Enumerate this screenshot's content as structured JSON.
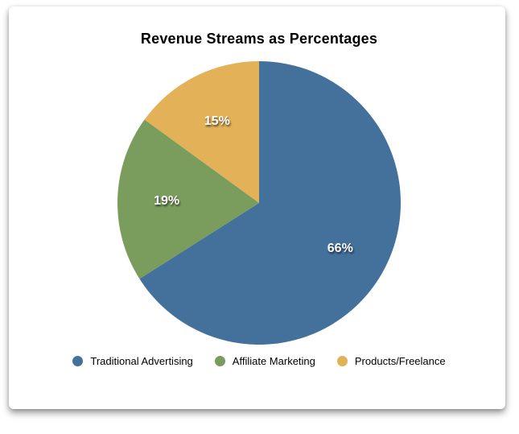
{
  "chart_data": {
    "type": "pie",
    "title": "Revenue Streams as Percentages",
    "slices": [
      {
        "label": "Traditional Advertising",
        "value": 66,
        "display_label": "66%",
        "color": "#44709c"
      },
      {
        "label": "Affiliate Marketing",
        "value": 19,
        "display_label": "19%",
        "color": "#7a9d5d"
      },
      {
        "label": "Products/Freelance",
        "value": 15,
        "display_label": "15%",
        "color": "#e3b157"
      }
    ],
    "start_angle_deg": 0,
    "direction": "clockwise",
    "legend_position": "bottom",
    "slice_label_color": "#ffffff",
    "title_color": "#000000",
    "background": "#ffffff"
  }
}
